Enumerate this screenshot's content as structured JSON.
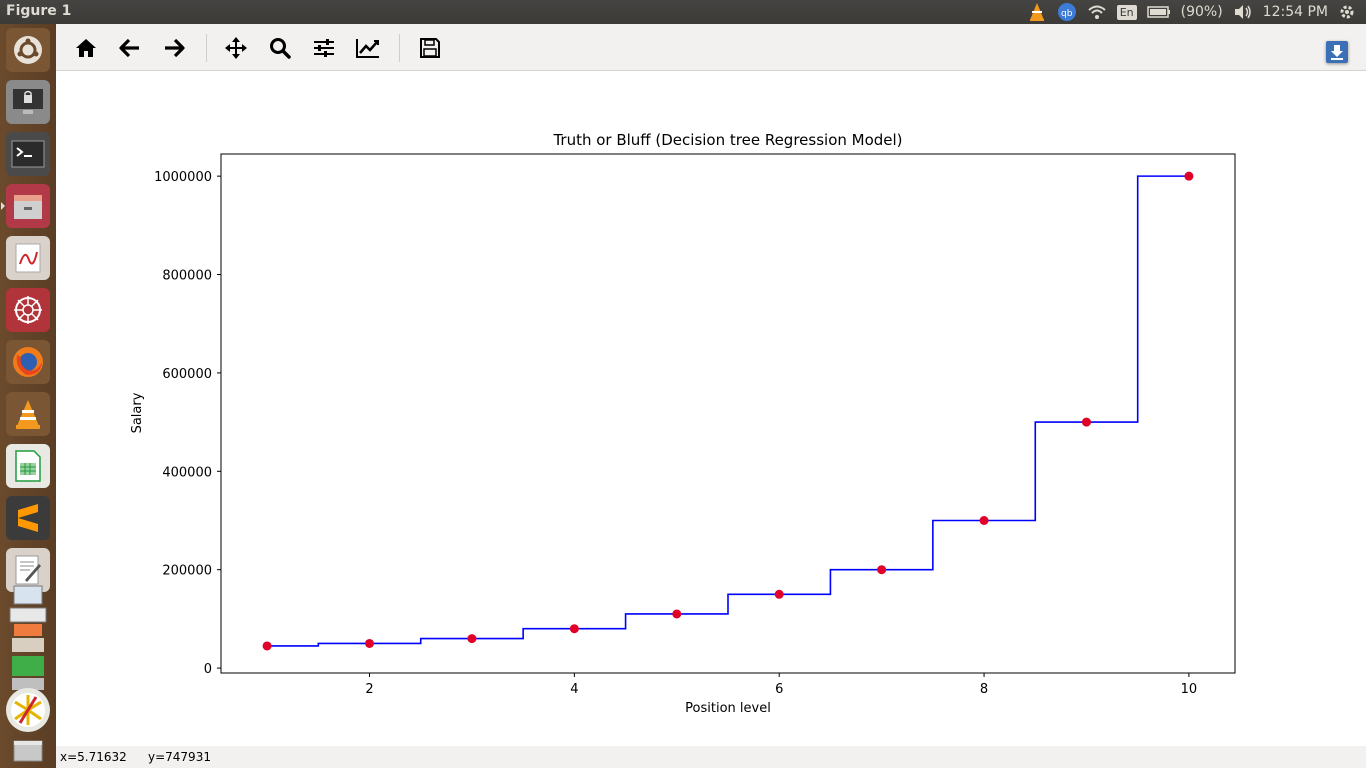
{
  "window": {
    "title": "Figure 1"
  },
  "tray": {
    "battery": "(90%)",
    "clock": "12:54 PM",
    "keyboard": "En"
  },
  "status": {
    "x_readout": "x=5.71632",
    "y_readout": "y=747931"
  },
  "colors": {
    "line": "#0000ff",
    "points": "#e0002a",
    "panel": "#3c3b37",
    "toolbar": "#f2f1f0"
  },
  "launcher": [
    "ubuntu-icon",
    "lock-screen-icon",
    "terminal-icon",
    "files-icon",
    "document-viewer-icon",
    "network-icon",
    "firefox-icon",
    "vlc-icon",
    "spreadsheet-icon",
    "sublime-icon",
    "text-editor-icon",
    "stacked-apps-icon",
    "pinwheel-icon",
    "trash-icon"
  ],
  "chart_data": {
    "type": "line",
    "title": "Truth or Bluff (Decision tree Regression Model)",
    "xlabel": "Position level",
    "ylabel": "Salary",
    "xlim": [
      0.55,
      10.45
    ],
    "ylim": [
      -10000,
      1045000
    ],
    "xticks": [
      2,
      4,
      6,
      8,
      10
    ],
    "xtick_labels": [
      "2",
      "4",
      "6",
      "8",
      "10"
    ],
    "yticks": [
      0,
      200000,
      400000,
      600000,
      800000,
      1000000
    ],
    "ytick_labels": [
      "0",
      "200000",
      "400000",
      "600000",
      "800000",
      "1000000"
    ],
    "grid": false,
    "series": [
      {
        "kind": "scatter",
        "x": [
          1,
          2,
          3,
          4,
          5,
          6,
          7,
          8,
          9,
          10
        ],
        "y": [
          45000,
          50000,
          60000,
          80000,
          110000,
          150000,
          200000,
          300000,
          500000,
          1000000
        ]
      },
      {
        "kind": "step",
        "x": [
          1,
          1.5,
          2.5,
          3.5,
          4.5,
          5.5,
          6.5,
          7.5,
          8.5,
          9.5,
          10
        ],
        "y": [
          45000,
          50000,
          60000,
          80000,
          110000,
          150000,
          200000,
          300000,
          500000,
          1000000,
          1000000
        ]
      }
    ]
  }
}
